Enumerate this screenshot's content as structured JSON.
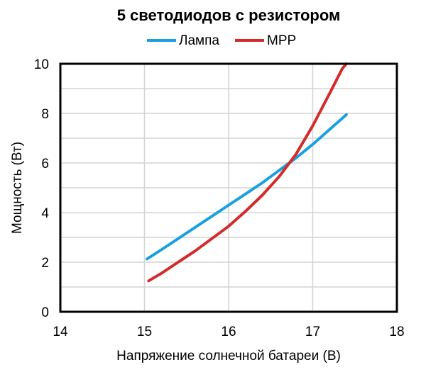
{
  "chart_data": {
    "type": "line",
    "title": "5 светодиодов с резистором",
    "xlabel": "Напряжение солнечной батареи (В)",
    "ylabel": "Мощность (Вт)",
    "xlim": [
      14,
      18
    ],
    "ylim": [
      0,
      10
    ],
    "xticks": [
      14,
      15,
      16,
      17,
      18
    ],
    "yticks": [
      0,
      2,
      4,
      6,
      8,
      10
    ],
    "grid": true,
    "legend_position": "top-center",
    "series": [
      {
        "name": "Лампа",
        "color": "#1aa0e0",
        "x": [
          15.03,
          15.2,
          15.4,
          15.6,
          15.8,
          16.0,
          16.2,
          16.4,
          16.6,
          16.8,
          17.0,
          17.2,
          17.4
        ],
        "y": [
          2.13,
          2.5,
          2.95,
          3.4,
          3.85,
          4.3,
          4.75,
          5.2,
          5.7,
          6.2,
          6.75,
          7.35,
          7.95
        ]
      },
      {
        "name": "MPP",
        "color": "#d42a2a",
        "x": [
          15.05,
          15.2,
          15.4,
          15.6,
          15.8,
          16.0,
          16.2,
          16.4,
          16.6,
          16.8,
          17.0,
          17.2,
          17.35,
          17.4
        ],
        "y": [
          1.25,
          1.55,
          2.0,
          2.45,
          2.95,
          3.45,
          4.05,
          4.7,
          5.45,
          6.35,
          7.5,
          8.8,
          9.8,
          10.0
        ]
      }
    ]
  }
}
